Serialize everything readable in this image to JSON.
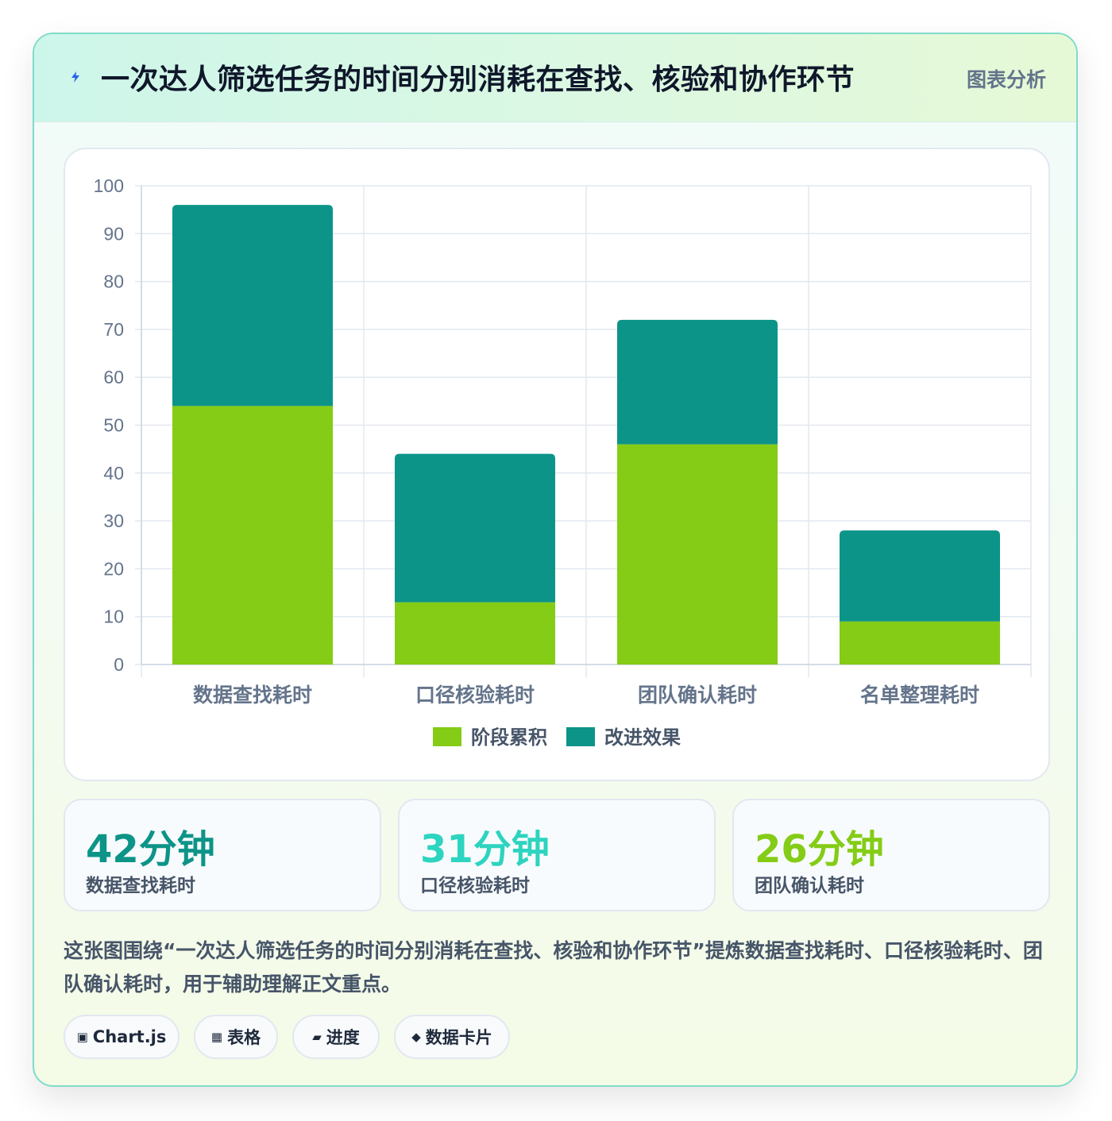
{
  "header": {
    "title": "一次达人筛选任务的时间分别消耗在查找、核验和协作环节",
    "tag": "图表分析"
  },
  "colors": {
    "green": "#84cc16",
    "teal": "#0d9488",
    "cyan": "#2dd4bf"
  },
  "chart_data": {
    "type": "bar",
    "stacked": true,
    "categories": [
      "数据查找耗时",
      "口径核验耗时",
      "团队确认耗时",
      "名单整理耗时"
    ],
    "series": [
      {
        "name": "阶段累积",
        "color": "#84cc16",
        "values": [
          54,
          13,
          46,
          9
        ]
      },
      {
        "name": "改进效果",
        "color": "#0d9488",
        "values": [
          42,
          31,
          26,
          19
        ]
      }
    ],
    "ylim": [
      0,
      100
    ],
    "yticks": [
      0,
      10,
      20,
      30,
      40,
      50,
      60,
      70,
      80,
      90,
      100
    ],
    "grid": true,
    "legend": "bottom"
  },
  "stats": [
    {
      "value": "42分钟",
      "label": "数据查找耗时",
      "color": "#0d9488"
    },
    {
      "value": "31分钟",
      "label": "口径核验耗时",
      "color": "#2dd4bf"
    },
    {
      "value": "26分钟",
      "label": "团队确认耗时",
      "color": "#84cc16"
    }
  ],
  "description": "这张图围绕“一次达人筛选任务的时间分别消耗在查找、核验和协作环节”提炼数据查找耗时、口径核验耗时、团队确认耗时，用于辅助理解正文重点。",
  "chips": [
    {
      "icon": "▣",
      "label": "Chart.js"
    },
    {
      "icon": "▦",
      "label": "表格"
    },
    {
      "icon": "▰",
      "label": "进度"
    },
    {
      "icon": "◆",
      "label": "数据卡片"
    }
  ]
}
